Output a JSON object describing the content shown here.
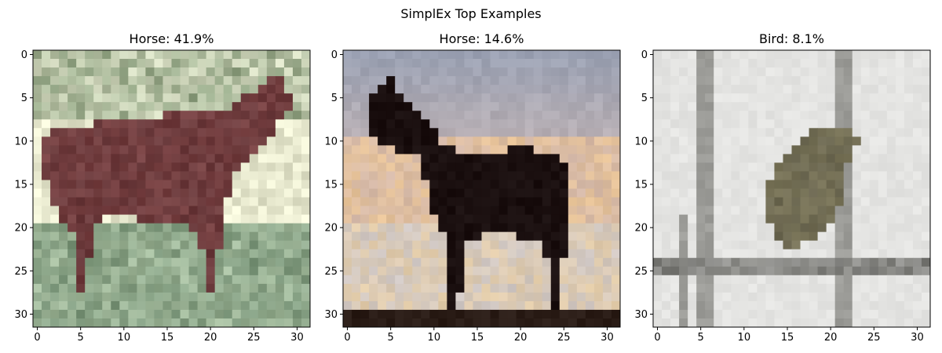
{
  "chart_data": {
    "type": "image",
    "title": "SimplEx Top Examples",
    "panels": [
      {
        "title": "Horse: 41.9%",
        "label": "Horse",
        "weight_percent": 41.9,
        "xlim": [
          -0.5,
          31.5
        ],
        "ylim": [
          31.5,
          -0.5
        ],
        "xticks": [
          0,
          5,
          10,
          15,
          20,
          25,
          30
        ],
        "yticks": [
          0,
          5,
          10,
          15,
          20,
          25,
          30
        ],
        "palette": {
          "bg": "#d6dcc2",
          "subject": "#6a3a3c",
          "ground": "#7f9a7e",
          "accent": "#f2f0d6"
        }
      },
      {
        "title": "Horse: 14.6%",
        "label": "Horse",
        "weight_percent": 14.6,
        "xlim": [
          -0.5,
          31.5
        ],
        "ylim": [
          31.5,
          -0.5
        ],
        "xticks": [
          0,
          5,
          10,
          15,
          20,
          25,
          30
        ],
        "yticks": [
          0,
          5,
          10,
          15,
          20,
          25,
          30
        ],
        "palette": {
          "sky_top": "#9aa0b2",
          "sky_mid": "#f0c890",
          "subject": "#1a0f0f",
          "ground": "#2a1c16"
        }
      },
      {
        "title": "Bird: 8.1%",
        "label": "Bird",
        "weight_percent": 8.1,
        "xlim": [
          -0.5,
          31.5
        ],
        "ylim": [
          31.5,
          -0.5
        ],
        "xticks": [
          0,
          5,
          10,
          15,
          20,
          25,
          30
        ],
        "yticks": [
          0,
          5,
          10,
          15,
          20,
          25,
          30
        ],
        "palette": {
          "bg": "#e4e4e2",
          "poles": "#9c9c98",
          "subject": "#6a6650",
          "branch": "#6e6e6a"
        }
      }
    ]
  }
}
